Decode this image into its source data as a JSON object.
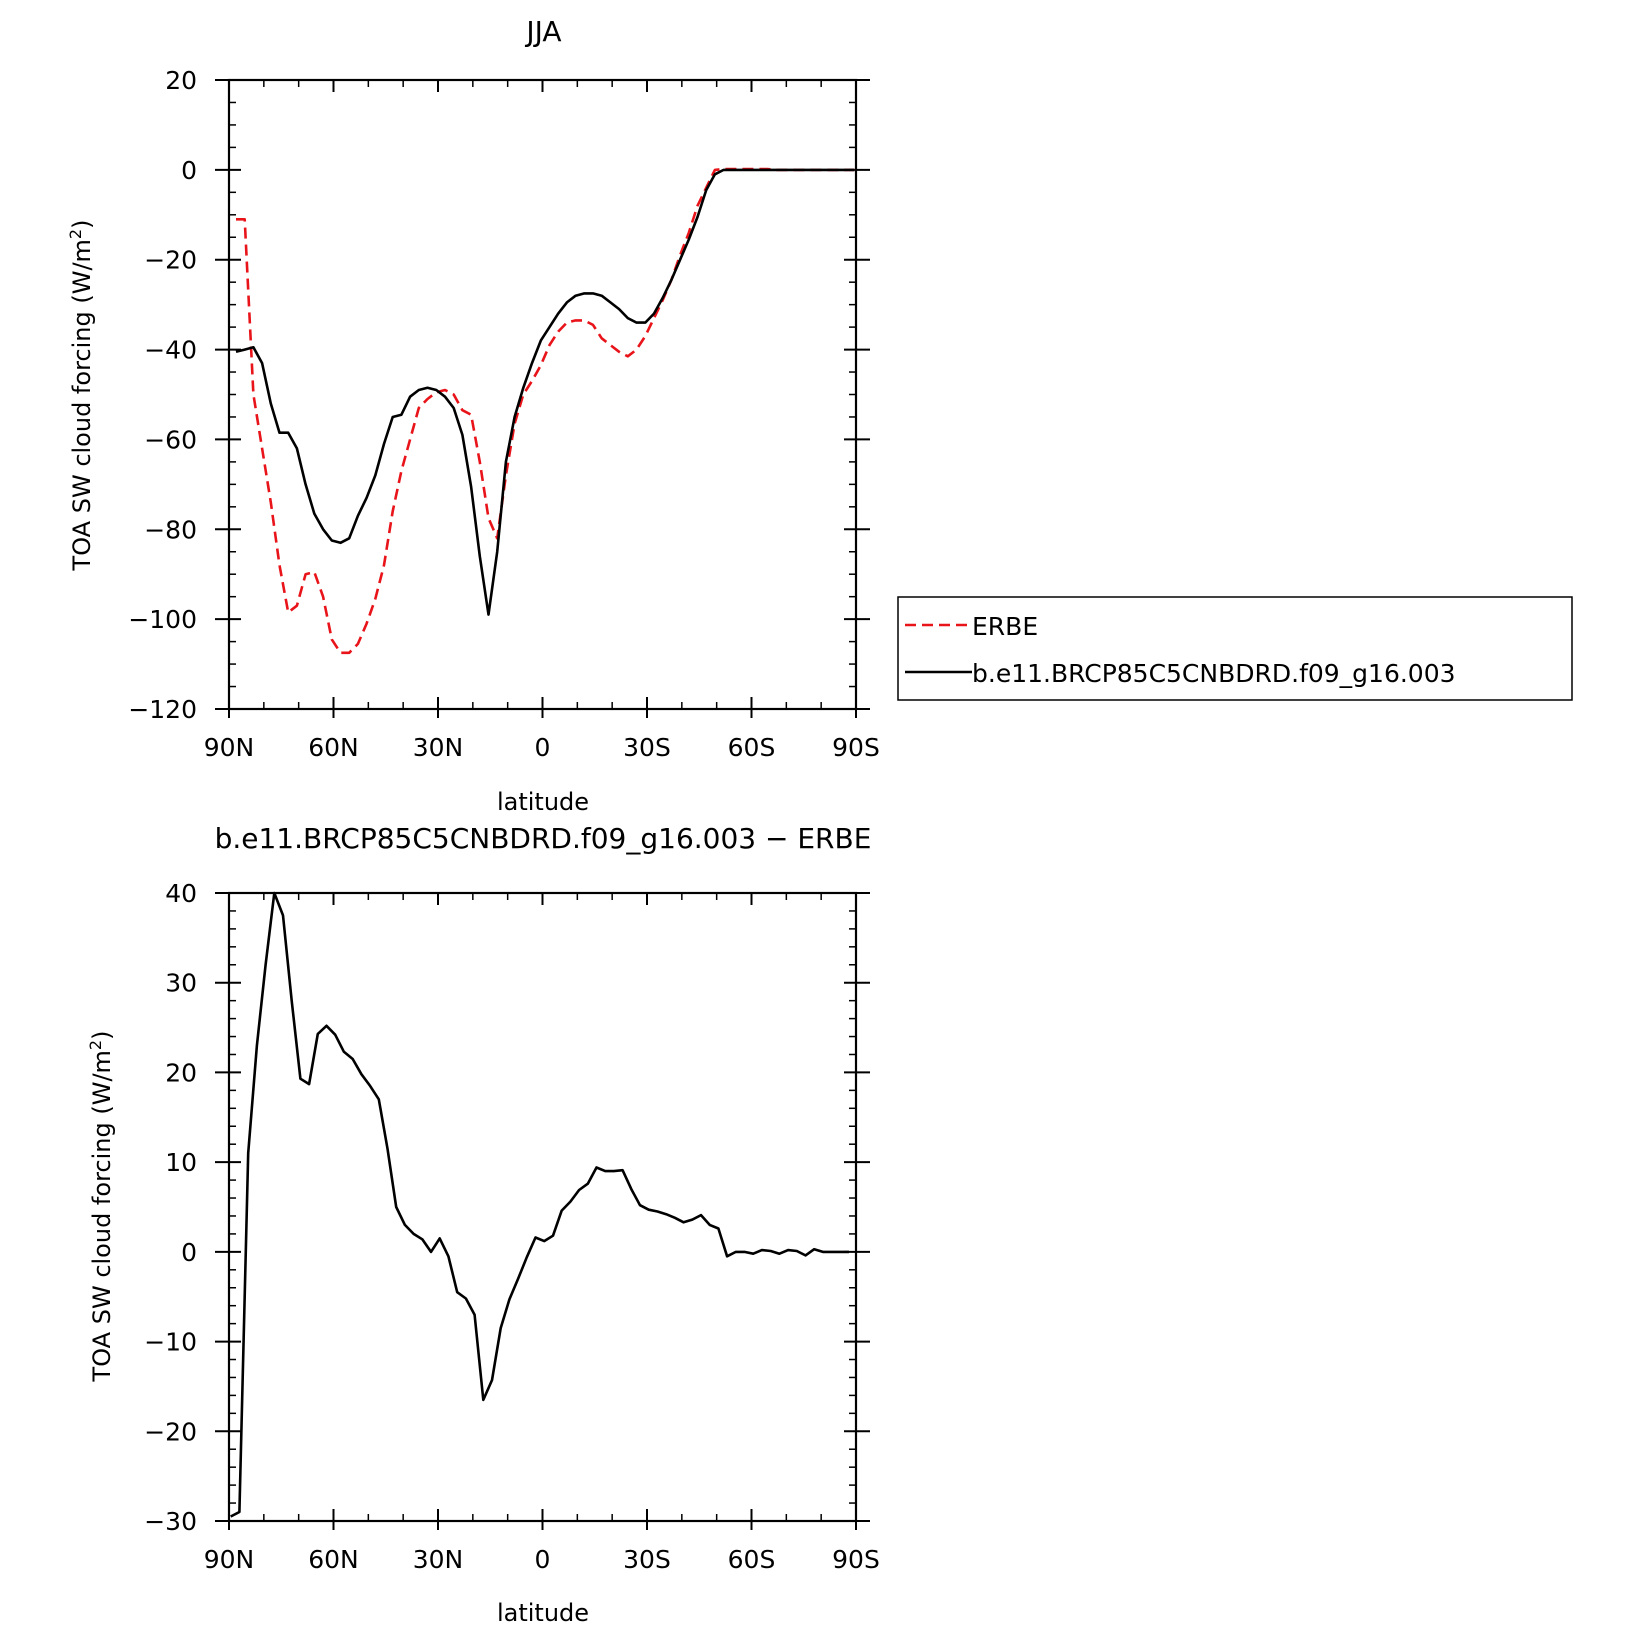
{
  "chart_data": [
    {
      "type": "line",
      "title": "JJA",
      "xlabel": "latitude",
      "ylabel_main": "TOA SW cloud forcing (W/m",
      "ylabel_sup": "2",
      "ylabel_close": ")",
      "xlim": [
        90,
        -90
      ],
      "ylim": [
        -120,
        20
      ],
      "xticks": [
        90,
        60,
        30,
        0,
        -30,
        -60,
        -90
      ],
      "xtick_labels": [
        "90N",
        "60N",
        "30N",
        "0",
        "30S",
        "60S",
        "90S"
      ],
      "yticks": [
        20,
        0,
        -20,
        -40,
        -60,
        -80,
        -100,
        -120
      ],
      "ytick_labels": [
        "20",
        "0",
        "−20",
        "−40",
        "−60",
        "−80",
        "−100",
        "−120"
      ],
      "legend": {
        "placement": "right"
      },
      "series": [
        {
          "name": "ERBE",
          "color": "#e8141a",
          "dash": true,
          "x": [
            88,
            85.5,
            83,
            80.5,
            78,
            75.5,
            73,
            70.5,
            68,
            65.5,
            63,
            60.5,
            58,
            55.5,
            53,
            50.5,
            48,
            45.5,
            43,
            40.5,
            38,
            35.5,
            33,
            30.5,
            28,
            25.5,
            23,
            20.5,
            18,
            15.5,
            13,
            10.5,
            8,
            5.5,
            3,
            0.5,
            -2,
            -4.5,
            -7,
            -9.5,
            -12,
            -14.5,
            -17,
            -19.5,
            -22,
            -24.5,
            -27,
            -29.5,
            -32,
            -34.5,
            -37,
            -39.5,
            -42,
            -44.5,
            -47,
            -49.5,
            -52,
            -54.5,
            -57,
            -59.5,
            -62,
            -64.5,
            -67,
            -69.5,
            -72,
            -74.5,
            -77,
            -79.5,
            -82,
            -84.5,
            -87,
            -89.5
          ],
          "y": [
            -11,
            -11,
            -50,
            -62,
            -74,
            -88,
            -98.5,
            -97,
            -90,
            -89.5,
            -95,
            -104.5,
            -107.5,
            -107.5,
            -105.5,
            -101,
            -95.5,
            -88,
            -76,
            -67,
            -60,
            -53,
            -51,
            -49.5,
            -49,
            -50,
            -53.5,
            -54.5,
            -65,
            -77.5,
            -82,
            -68,
            -56.5,
            -50,
            -47,
            -43.5,
            -39,
            -36,
            -34,
            -33.5,
            -33.5,
            -34.5,
            -37.5,
            -39,
            -40.5,
            -41.5,
            -40,
            -37,
            -33,
            -29,
            -24.5,
            -19,
            -14,
            -8,
            -4,
            0,
            0.2,
            0.2,
            0.2,
            0.2,
            0.2,
            0.2,
            0,
            0,
            0,
            0,
            0,
            0,
            0,
            0,
            0,
            0
          ]
        },
        {
          "name": "b.e11.BRCP85C5CNBDRD.f09_g16.003",
          "color": "#000000",
          "dash": false,
          "x": [
            88,
            85.5,
            83,
            80.5,
            78,
            75.5,
            73,
            70.5,
            68,
            65.5,
            63,
            60.5,
            58,
            55.5,
            53,
            50.5,
            48,
            45.5,
            43,
            40.5,
            38,
            35.5,
            33,
            30.5,
            28,
            25.5,
            23,
            20.5,
            18,
            15.5,
            13,
            10.5,
            8,
            5.5,
            3,
            0.5,
            -2,
            -4.5,
            -7,
            -9.5,
            -12,
            -14.5,
            -17,
            -19.5,
            -22,
            -24.5,
            -27,
            -29.5,
            -32,
            -34.5,
            -37,
            -39.5,
            -42,
            -44.5,
            -47,
            -49.5,
            -52,
            -54.5,
            -57,
            -59.5,
            -62,
            -64.5,
            -67,
            -69.5,
            -72,
            -74.5,
            -77,
            -79.5,
            -82,
            -84.5,
            -87,
            -89.5
          ],
          "y": [
            -40.5,
            -40,
            -39.5,
            -43,
            -52,
            -58.5,
            -58.5,
            -62,
            -70,
            -76.5,
            -80,
            -82.5,
            -83,
            -82,
            -77,
            -73,
            -68,
            -61,
            -55,
            -54.5,
            -50.5,
            -49,
            -48.5,
            -49,
            -50.5,
            -53,
            -59,
            -70.5,
            -86,
            -99,
            -85,
            -65,
            -55,
            -48.5,
            -43,
            -38,
            -35,
            -32,
            -29.5,
            -28,
            -27.5,
            -27.5,
            -28,
            -29.5,
            -31,
            -33,
            -34,
            -34,
            -32,
            -28.5,
            -24.5,
            -20,
            -15.5,
            -10.5,
            -4.5,
            -1,
            0,
            0,
            0,
            0,
            0,
            0,
            0,
            0,
            0,
            0,
            0,
            0,
            0,
            0,
            0,
            0
          ]
        }
      ]
    },
    {
      "type": "line",
      "title": "b.e11.BRCP85C5CNBDRD.f09_g16.003 − ERBE",
      "xlabel": "latitude",
      "ylabel_main": "TOA SW cloud forcing (W/m",
      "ylabel_sup": "2",
      "ylabel_close": ")",
      "xlim": [
        90,
        -90
      ],
      "ylim": [
        -30,
        40
      ],
      "xticks": [
        90,
        60,
        30,
        0,
        -30,
        -60,
        -90
      ],
      "xtick_labels": [
        "90N",
        "60N",
        "30N",
        "0",
        "30S",
        "60S",
        "90S"
      ],
      "yticks": [
        40,
        30,
        20,
        10,
        0,
        -10,
        -20,
        -30
      ],
      "ytick_labels": [
        "40",
        "30",
        "20",
        "10",
        "0",
        "−10",
        "−20",
        "−30"
      ],
      "series": [
        {
          "color": "#000000",
          "dash": false,
          "x": [
            89.5,
            87,
            84.5,
            82,
            79.5,
            77,
            74.5,
            72,
            69.5,
            67,
            64.5,
            62,
            59.5,
            57,
            54.5,
            52,
            49.5,
            47,
            44.5,
            42,
            39.5,
            37,
            34.5,
            32,
            29.5,
            27,
            24.5,
            22,
            19.5,
            17,
            14.5,
            12,
            9.5,
            7,
            4.5,
            2,
            -0.5,
            -3,
            -5.5,
            -8,
            -10.5,
            -13,
            -15.5,
            -18,
            -20.5,
            -23,
            -25.5,
            -28,
            -30.5,
            -33,
            -35.5,
            -38,
            -40.5,
            -43,
            -45.5,
            -48,
            -50.5,
            -53,
            -55.5,
            -58,
            -60.5,
            -63,
            -65.5,
            -68,
            -70.5,
            -73,
            -75.5,
            -78,
            -80.5,
            -83,
            -85.5,
            -88
          ],
          "y": [
            -29.5,
            -29,
            11,
            23,
            32,
            40,
            37.5,
            28,
            19.3,
            18.7,
            24.3,
            25.2,
            24.2,
            22.3,
            21.5,
            19.8,
            18.5,
            17,
            11.5,
            5,
            3,
            2,
            1.4,
            0,
            1.5,
            -0.5,
            -4.5,
            -5.2,
            -7,
            -16.5,
            -14.3,
            -8.5,
            -5.3,
            -3,
            -0.6,
            1.6,
            1.2,
            1.8,
            4.6,
            5.6,
            6.9,
            7.6,
            9.4,
            9,
            9,
            9.1,
            7,
            5.2,
            4.7,
            4.5,
            4.2,
            3.8,
            3.3,
            3.6,
            4.1,
            3,
            2.6,
            -0.5,
            0,
            0,
            -0.2,
            0.2,
            0.1,
            -0.2,
            0.2,
            0.1,
            -0.4,
            0.3,
            0,
            0,
            0,
            0
          ]
        }
      ]
    }
  ]
}
